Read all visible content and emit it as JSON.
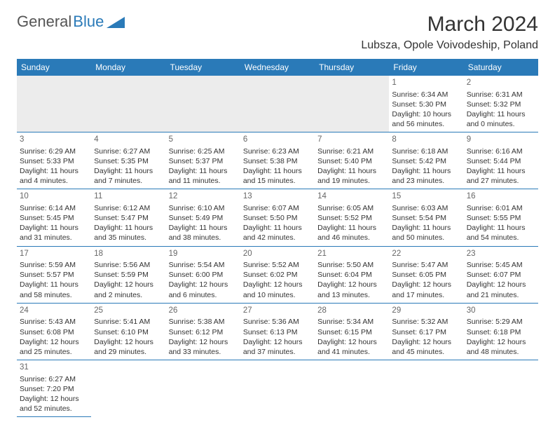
{
  "brand": {
    "part1": "General",
    "part2": "Blue"
  },
  "title": "March 2024",
  "location": "Lubsza, Opole Voivodeship, Poland",
  "colors": {
    "header_bg": "#2a7ab8",
    "blank_bg": "#ececec",
    "text": "#333333"
  },
  "weekdays": [
    "Sunday",
    "Monday",
    "Tuesday",
    "Wednesday",
    "Thursday",
    "Friday",
    "Saturday"
  ],
  "blanks_before": 5,
  "days": [
    {
      "n": "1",
      "sr": "Sunrise: 6:34 AM",
      "ss": "Sunset: 5:30 PM",
      "dl": "Daylight: 10 hours and 56 minutes."
    },
    {
      "n": "2",
      "sr": "Sunrise: 6:31 AM",
      "ss": "Sunset: 5:32 PM",
      "dl": "Daylight: 11 hours and 0 minutes."
    },
    {
      "n": "3",
      "sr": "Sunrise: 6:29 AM",
      "ss": "Sunset: 5:33 PM",
      "dl": "Daylight: 11 hours and 4 minutes."
    },
    {
      "n": "4",
      "sr": "Sunrise: 6:27 AM",
      "ss": "Sunset: 5:35 PM",
      "dl": "Daylight: 11 hours and 7 minutes."
    },
    {
      "n": "5",
      "sr": "Sunrise: 6:25 AM",
      "ss": "Sunset: 5:37 PM",
      "dl": "Daylight: 11 hours and 11 minutes."
    },
    {
      "n": "6",
      "sr": "Sunrise: 6:23 AM",
      "ss": "Sunset: 5:38 PM",
      "dl": "Daylight: 11 hours and 15 minutes."
    },
    {
      "n": "7",
      "sr": "Sunrise: 6:21 AM",
      "ss": "Sunset: 5:40 PM",
      "dl": "Daylight: 11 hours and 19 minutes."
    },
    {
      "n": "8",
      "sr": "Sunrise: 6:18 AM",
      "ss": "Sunset: 5:42 PM",
      "dl": "Daylight: 11 hours and 23 minutes."
    },
    {
      "n": "9",
      "sr": "Sunrise: 6:16 AM",
      "ss": "Sunset: 5:44 PM",
      "dl": "Daylight: 11 hours and 27 minutes."
    },
    {
      "n": "10",
      "sr": "Sunrise: 6:14 AM",
      "ss": "Sunset: 5:45 PM",
      "dl": "Daylight: 11 hours and 31 minutes."
    },
    {
      "n": "11",
      "sr": "Sunrise: 6:12 AM",
      "ss": "Sunset: 5:47 PM",
      "dl": "Daylight: 11 hours and 35 minutes."
    },
    {
      "n": "12",
      "sr": "Sunrise: 6:10 AM",
      "ss": "Sunset: 5:49 PM",
      "dl": "Daylight: 11 hours and 38 minutes."
    },
    {
      "n": "13",
      "sr": "Sunrise: 6:07 AM",
      "ss": "Sunset: 5:50 PM",
      "dl": "Daylight: 11 hours and 42 minutes."
    },
    {
      "n": "14",
      "sr": "Sunrise: 6:05 AM",
      "ss": "Sunset: 5:52 PM",
      "dl": "Daylight: 11 hours and 46 minutes."
    },
    {
      "n": "15",
      "sr": "Sunrise: 6:03 AM",
      "ss": "Sunset: 5:54 PM",
      "dl": "Daylight: 11 hours and 50 minutes."
    },
    {
      "n": "16",
      "sr": "Sunrise: 6:01 AM",
      "ss": "Sunset: 5:55 PM",
      "dl": "Daylight: 11 hours and 54 minutes."
    },
    {
      "n": "17",
      "sr": "Sunrise: 5:59 AM",
      "ss": "Sunset: 5:57 PM",
      "dl": "Daylight: 11 hours and 58 minutes."
    },
    {
      "n": "18",
      "sr": "Sunrise: 5:56 AM",
      "ss": "Sunset: 5:59 PM",
      "dl": "Daylight: 12 hours and 2 minutes."
    },
    {
      "n": "19",
      "sr": "Sunrise: 5:54 AM",
      "ss": "Sunset: 6:00 PM",
      "dl": "Daylight: 12 hours and 6 minutes."
    },
    {
      "n": "20",
      "sr": "Sunrise: 5:52 AM",
      "ss": "Sunset: 6:02 PM",
      "dl": "Daylight: 12 hours and 10 minutes."
    },
    {
      "n": "21",
      "sr": "Sunrise: 5:50 AM",
      "ss": "Sunset: 6:04 PM",
      "dl": "Daylight: 12 hours and 13 minutes."
    },
    {
      "n": "22",
      "sr": "Sunrise: 5:47 AM",
      "ss": "Sunset: 6:05 PM",
      "dl": "Daylight: 12 hours and 17 minutes."
    },
    {
      "n": "23",
      "sr": "Sunrise: 5:45 AM",
      "ss": "Sunset: 6:07 PM",
      "dl": "Daylight: 12 hours and 21 minutes."
    },
    {
      "n": "24",
      "sr": "Sunrise: 5:43 AM",
      "ss": "Sunset: 6:08 PM",
      "dl": "Daylight: 12 hours and 25 minutes."
    },
    {
      "n": "25",
      "sr": "Sunrise: 5:41 AM",
      "ss": "Sunset: 6:10 PM",
      "dl": "Daylight: 12 hours and 29 minutes."
    },
    {
      "n": "26",
      "sr": "Sunrise: 5:38 AM",
      "ss": "Sunset: 6:12 PM",
      "dl": "Daylight: 12 hours and 33 minutes."
    },
    {
      "n": "27",
      "sr": "Sunrise: 5:36 AM",
      "ss": "Sunset: 6:13 PM",
      "dl": "Daylight: 12 hours and 37 minutes."
    },
    {
      "n": "28",
      "sr": "Sunrise: 5:34 AM",
      "ss": "Sunset: 6:15 PM",
      "dl": "Daylight: 12 hours and 41 minutes."
    },
    {
      "n": "29",
      "sr": "Sunrise: 5:32 AM",
      "ss": "Sunset: 6:17 PM",
      "dl": "Daylight: 12 hours and 45 minutes."
    },
    {
      "n": "30",
      "sr": "Sunrise: 5:29 AM",
      "ss": "Sunset: 6:18 PM",
      "dl": "Daylight: 12 hours and 48 minutes."
    },
    {
      "n": "31",
      "sr": "Sunrise: 6:27 AM",
      "ss": "Sunset: 7:20 PM",
      "dl": "Daylight: 12 hours and 52 minutes."
    }
  ]
}
